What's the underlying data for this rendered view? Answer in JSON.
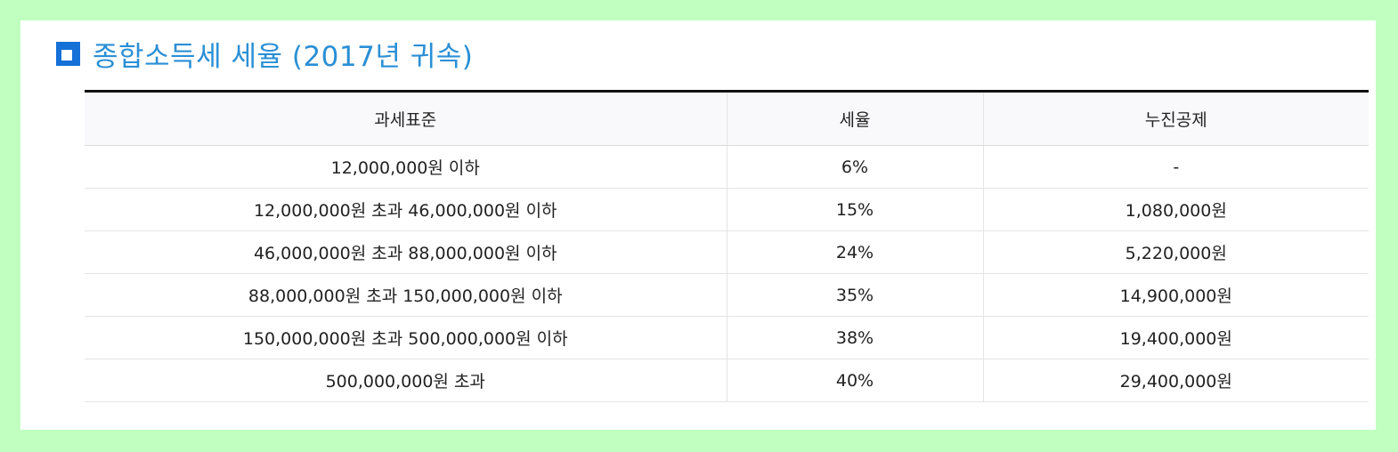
{
  "title": "종합소득세 세율 (2017년 귀속)",
  "table": {
    "headers": [
      "과세표준",
      "세율",
      "누진공제"
    ],
    "rows": [
      [
        "12,000,000원 이하",
        "6%",
        "-"
      ],
      [
        "12,000,000원 초과 46,000,000원 이하",
        "15%",
        "1,080,000원"
      ],
      [
        "46,000,000원 초과 88,000,000원 이하",
        "24%",
        "5,220,000원"
      ],
      [
        "88,000,000원 초과 150,000,000원 이하",
        "35%",
        "14,900,000원"
      ],
      [
        "150,000,000원 초과 500,000,000원 이하",
        "38%",
        "19,400,000원"
      ],
      [
        "500,000,000원 초과",
        "40%",
        "29,400,000원"
      ]
    ]
  },
  "colors": {
    "background": "#c0ffc0",
    "title": "#2a8fd6",
    "icon": "#1570d8"
  },
  "icons": {
    "title_icon": "square-bullet-icon"
  }
}
